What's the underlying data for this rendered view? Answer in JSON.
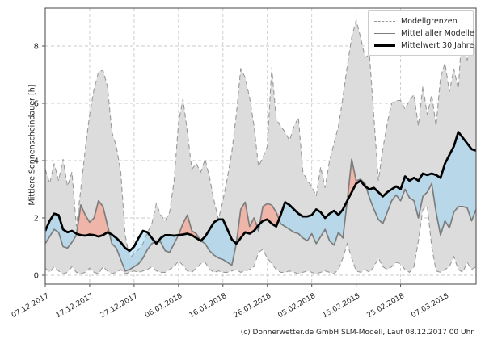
{
  "chart": {
    "caption": "(c) Donnerwetter.de GmbH SLM-Modell, Lauf 08.12.2017 00 Uhr",
    "legend": [
      {
        "label": "Modellgrenzen",
        "style": "dashed-gray"
      },
      {
        "label": "Mittel aller Modelle",
        "style": "solid-gray"
      },
      {
        "label": "Mittelwert 30 Jahre",
        "style": "thick-black"
      }
    ]
  },
  "chart_data": {
    "type": "line",
    "title": "",
    "xlabel": "",
    "ylabel": "Mittlere Sonnenscheindauer [h]",
    "ylim": [
      -0.31,
      9.35
    ],
    "y_ticks": [
      0,
      2,
      4,
      6,
      8
    ],
    "x_tick_labels": [
      "07.12.2017",
      "17.12.2017",
      "27.12.2017",
      "06.01.2018",
      "16.01.2018",
      "26.01.2018",
      "05.02.2018",
      "15.02.2018",
      "25.02.2018",
      "07.03.2018"
    ],
    "x_tick_positions": [
      0,
      10,
      20,
      30,
      40,
      50,
      60,
      70,
      80,
      90
    ],
    "grid": true,
    "legend_position": "upper right",
    "x_unit": "days since 07.12.2017",
    "series": [
      {
        "name": "Modellgrenzen (Maximum)",
        "values": [
          3.7,
          3.2,
          3.9,
          3.3,
          4.05,
          3.1,
          3.6,
          1.7,
          3.0,
          4.4,
          5.6,
          6.5,
          7.1,
          7.15,
          6.6,
          5.0,
          4.5,
          3.6,
          1.4,
          0.6,
          0.75,
          0.9,
          1.1,
          1.5,
          1.8,
          2.5,
          2.1,
          1.9,
          2.2,
          3.3,
          5.3,
          6.15,
          5.0,
          3.7,
          3.9,
          3.6,
          4.05,
          3.4,
          2.6,
          1.95,
          2.6,
          3.4,
          4.3,
          5.6,
          7.2,
          6.9,
          6.2,
          5.2,
          3.8,
          4.1,
          4.5,
          7.25,
          5.45,
          5.2,
          5.0,
          4.7,
          5.2,
          5.5,
          3.6,
          3.3,
          3.1,
          2.76,
          3.78,
          3.05,
          4.0,
          4.6,
          5.2,
          6.2,
          7.3,
          8.3,
          8.9,
          8.3,
          7.6,
          7.7,
          5.5,
          3.3,
          4.4,
          5.3,
          6.0,
          6.1,
          6.1,
          5.8,
          6.1,
          6.3,
          5.2,
          6.6,
          5.6,
          6.3,
          5.2,
          6.9,
          7.4,
          6.4,
          7.2,
          6.5,
          8.9,
          7.5,
          8.2,
          7.9
        ]
      },
      {
        "name": "Modellgrenzen (Minimum)",
        "values": [
          0.25,
          0.1,
          0.3,
          0.15,
          0.05,
          0.1,
          0.3,
          0.1,
          0.05,
          0.1,
          0.25,
          0.1,
          0.05,
          0.3,
          0.15,
          0.05,
          0.1,
          0.2,
          0.05,
          0.1,
          0.15,
          0.1,
          0.15,
          0.2,
          0.3,
          0.15,
          0.1,
          0.1,
          0.2,
          0.3,
          0.5,
          0.35,
          0.15,
          0.1,
          0.25,
          0.4,
          0.45,
          0.2,
          0.1,
          0.15,
          0.1,
          0.1,
          0.15,
          0.2,
          0.1,
          0.15,
          0.2,
          0.3,
          0.8,
          0.9,
          0.6,
          0.4,
          0.2,
          0.1,
          0.1,
          0.15,
          0.1,
          0.05,
          0.1,
          0.15,
          0.1,
          0.05,
          0.1,
          0.15,
          0.1,
          0.05,
          0.2,
          0.6,
          1.1,
          0.6,
          0.15,
          0.1,
          0.2,
          0.1,
          0.3,
          0.6,
          0.3,
          0.2,
          0.3,
          0.45,
          0.4,
          0.2,
          0.1,
          0.3,
          1.2,
          2.3,
          2.4,
          1.0,
          0.15,
          0.1,
          0.2,
          0.3,
          0.65,
          0.2,
          0.1,
          0.45,
          0.2,
          0.3
        ]
      },
      {
        "name": "Mittel aller Modelle",
        "values": [
          1.1,
          1.35,
          1.6,
          1.5,
          1.0,
          0.95,
          1.15,
          1.4,
          2.45,
          2.1,
          1.85,
          2.0,
          2.6,
          2.4,
          1.75,
          1.1,
          0.95,
          0.55,
          0.15,
          0.2,
          0.3,
          0.4,
          0.6,
          0.9,
          1.1,
          1.2,
          1.15,
          0.85,
          0.8,
          1.1,
          1.4,
          1.8,
          2.1,
          1.55,
          1.45,
          1.2,
          1.1,
          0.85,
          0.7,
          0.6,
          0.55,
          0.45,
          0.35,
          1.1,
          2.3,
          2.55,
          1.7,
          2.0,
          1.55,
          2.4,
          2.5,
          2.45,
          2.2,
          1.8,
          1.7,
          1.6,
          1.5,
          1.45,
          1.3,
          1.2,
          1.45,
          1.1,
          1.35,
          1.6,
          1.2,
          1.05,
          1.5,
          1.3,
          2.6,
          4.05,
          3.3,
          3.35,
          3.2,
          2.7,
          2.3,
          1.95,
          1.8,
          2.2,
          2.6,
          2.8,
          2.6,
          3.0,
          2.7,
          2.6,
          2.0,
          2.75,
          2.9,
          3.2,
          2.2,
          1.4,
          1.9,
          1.65,
          2.2,
          2.4,
          2.4,
          2.35,
          1.9,
          2.3
        ]
      },
      {
        "name": "Mittelwert 30 Jahre",
        "values": [
          1.55,
          1.9,
          2.15,
          2.1,
          1.6,
          1.5,
          1.55,
          1.45,
          1.4,
          1.38,
          1.42,
          1.4,
          1.35,
          1.4,
          1.5,
          1.42,
          1.3,
          1.15,
          0.95,
          0.85,
          1.0,
          1.3,
          1.55,
          1.5,
          1.3,
          1.1,
          1.3,
          1.4,
          1.4,
          1.38,
          1.4,
          1.42,
          1.45,
          1.4,
          1.3,
          1.2,
          1.35,
          1.6,
          1.85,
          1.95,
          1.95,
          1.6,
          1.25,
          1.1,
          1.3,
          1.5,
          1.45,
          1.55,
          1.75,
          1.9,
          1.95,
          1.8,
          1.7,
          2.1,
          2.55,
          2.45,
          2.3,
          2.15,
          2.05,
          2.05,
          2.1,
          2.3,
          2.2,
          2.0,
          2.15,
          2.25,
          2.1,
          2.3,
          2.6,
          2.9,
          3.2,
          3.3,
          3.1,
          3.0,
          3.05,
          2.9,
          2.75,
          2.9,
          3.0,
          3.1,
          3.0,
          3.45,
          3.3,
          3.4,
          3.3,
          3.55,
          3.5,
          3.55,
          3.5,
          3.4,
          3.9,
          4.2,
          4.5,
          5.0,
          4.8,
          4.6,
          4.4,
          4.35
        ]
      }
    ],
    "colors": {
      "band_fill": "#dcdcdc",
      "band_border": "#999999",
      "model_mean_line": "#7d7d7d",
      "climate_mean_line": "#000000",
      "above_normal_fill": "rgba(255,142,116,0.5)",
      "below_normal_fill": "rgba(148,212,248,0.5)",
      "grid": "#c9c9c9",
      "frame": "#555555",
      "text": "#262626"
    }
  }
}
